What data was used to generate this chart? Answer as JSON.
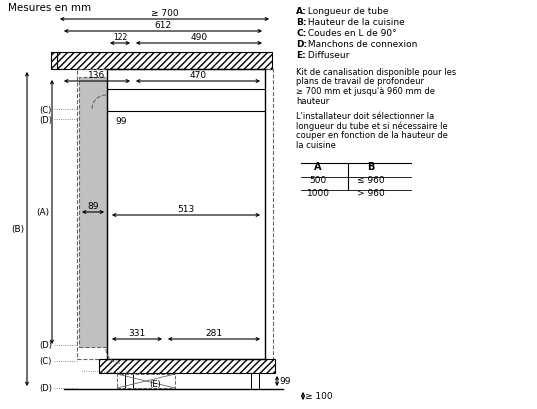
{
  "title": "Mesures en mm",
  "legend_items": [
    {
      "label": "A",
      "desc": "Longueur de tube"
    },
    {
      "label": "B",
      "desc": "Hauteur de la cuisine"
    },
    {
      "label": "C",
      "desc": "Coudes en L de 90°"
    },
    {
      "label": "D",
      "desc": "Manchons de connexion"
    },
    {
      "label": "E",
      "desc": "Diffuseur"
    }
  ],
  "note1": "Kit de canalisation disponible pour les\nplans de travail de profondeur\n≥ 700 mm et jusqu'à 960 mm de\nhauteur",
  "note2": "L'installateur doit sélectionner la\nlongueur du tube et si nécessaire le\ncouper en fonction de la hauteur de\nla cuisine",
  "table_headers": [
    "A",
    "B"
  ],
  "table_rows": [
    [
      "500",
      "≤ 960"
    ],
    [
      "1000",
      "> 960"
    ]
  ],
  "bg_color": "#ffffff",
  "line_color": "#000000",
  "gray_fill": "#c0c0c0",
  "dash_color": "#666666"
}
